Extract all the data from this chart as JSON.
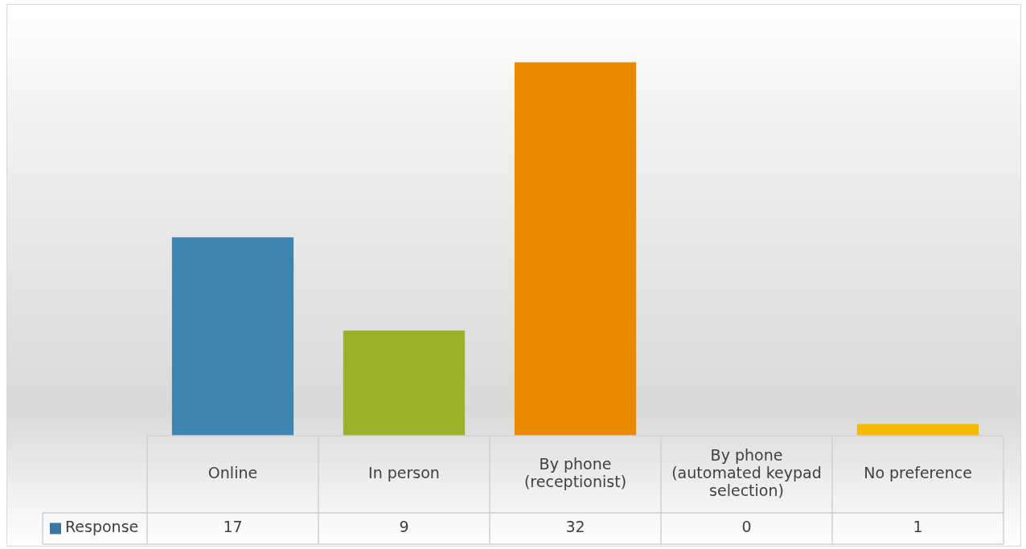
{
  "chart_data": {
    "type": "bar",
    "categories": [
      "Online",
      "In person",
      "By phone (receptionist)",
      "By phone (automated keypad selection)",
      "No preference"
    ],
    "series": [
      {
        "name": "Response",
        "color": "#3a78a3",
        "colors": [
          "#3d84b0",
          "#9ab22a",
          "#e88700",
          "#7f7f7f",
          "#f5b800"
        ],
        "values": [
          17,
          9,
          32,
          0,
          1
        ]
      }
    ],
    "data_labels": true,
    "legend": "bottom left"
  }
}
